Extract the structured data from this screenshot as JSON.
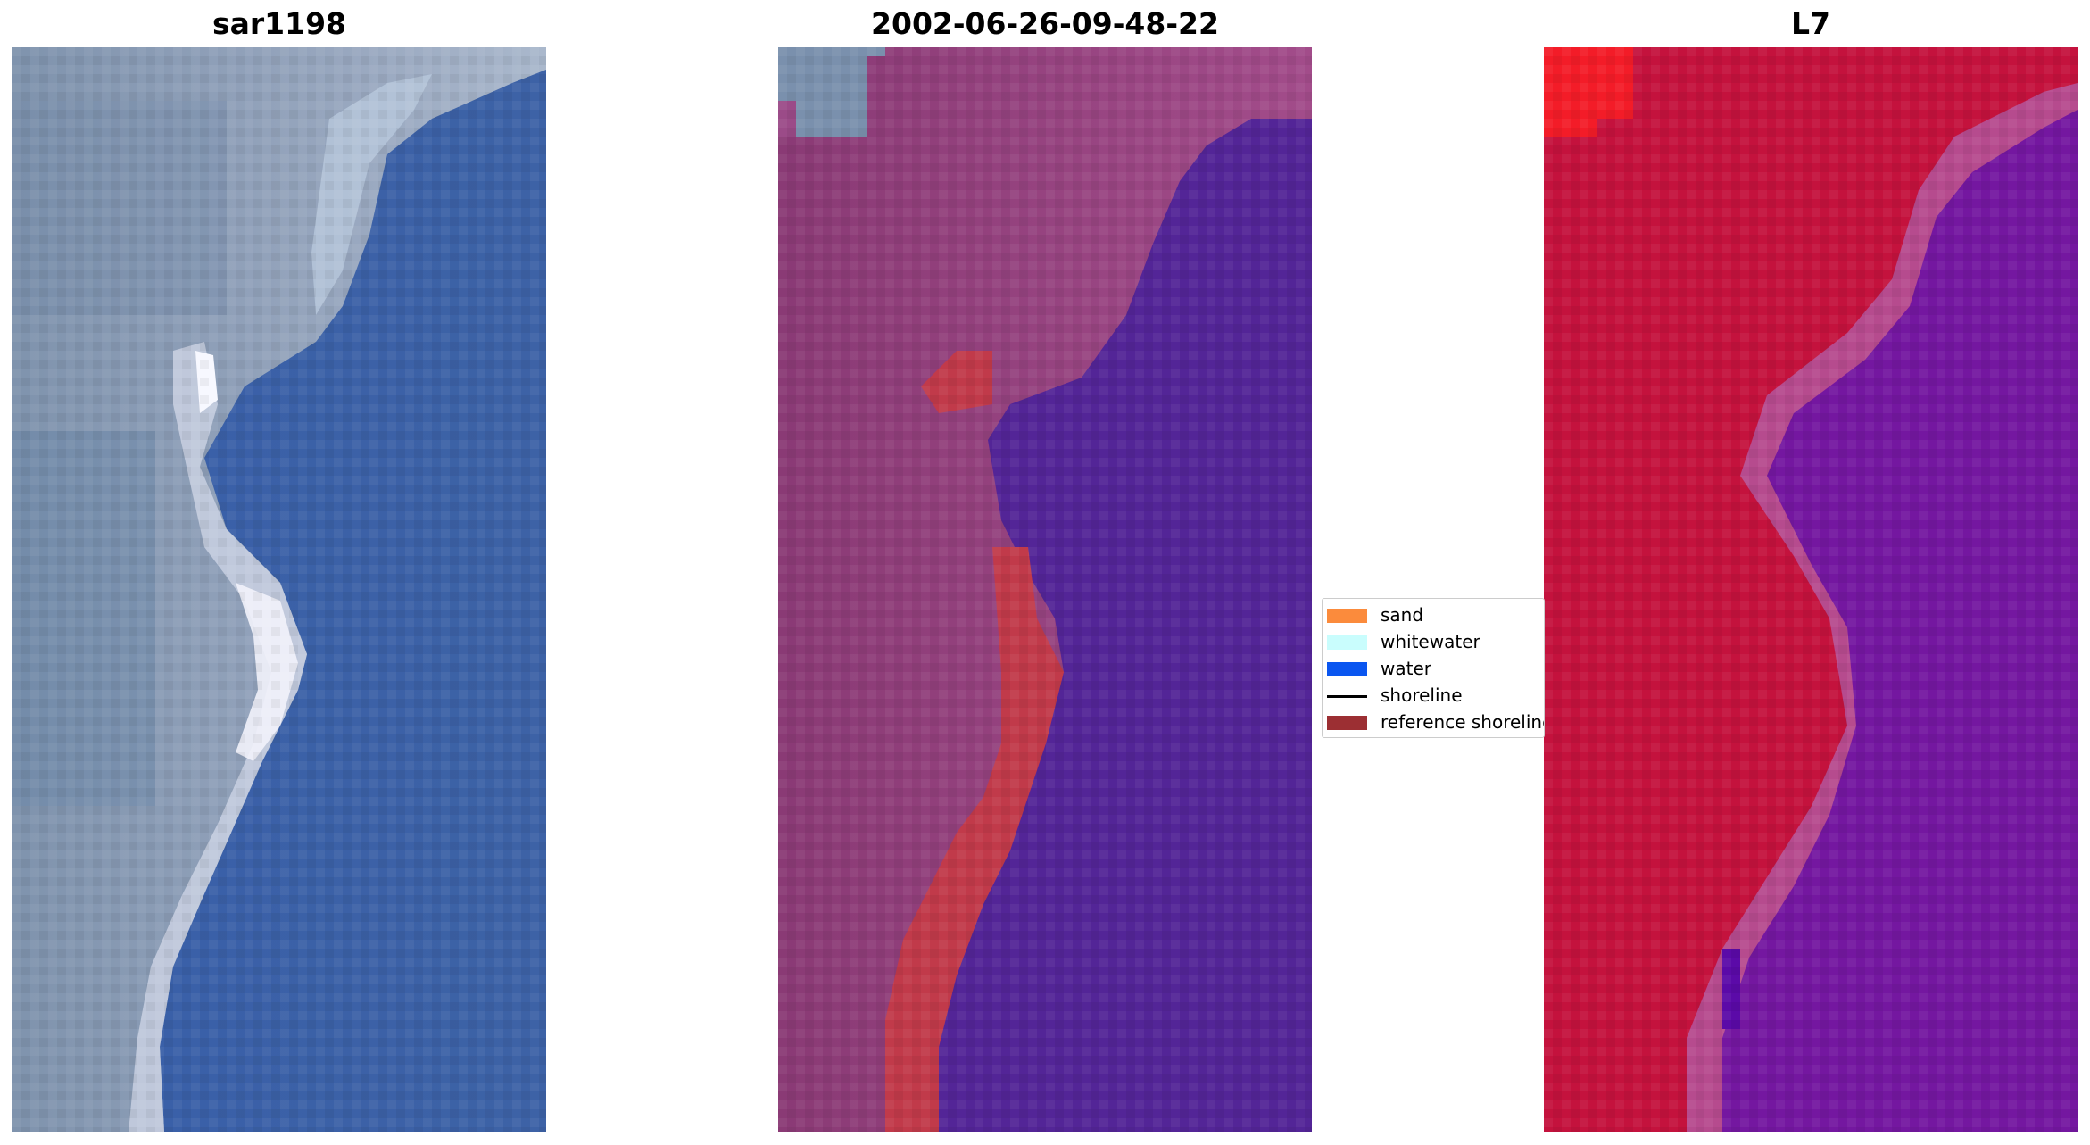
{
  "panels": [
    {
      "title": "sar1198"
    },
    {
      "title": "2002-06-26-09-48-22"
    },
    {
      "title": "L7"
    }
  ],
  "legend": {
    "items": [
      {
        "label": "sand",
        "color": "#fb8b3c",
        "kind": "patch"
      },
      {
        "label": "whitewater",
        "color": "#c9fdfd",
        "kind": "patch"
      },
      {
        "label": "water",
        "color": "#0a56f0",
        "kind": "patch"
      },
      {
        "label": "shoreline",
        "color": "#000000",
        "kind": "line"
      },
      {
        "label": "reference shoreline",
        "color": "#9c2f33",
        "kind": "patch"
      }
    ]
  },
  "colors": {
    "rgb_land": "#8a9bb5",
    "rgb_water": "#3f66ab",
    "classified_land": "#8c3d78",
    "classified_water": "#532597",
    "classified_reference": "#c13a4a",
    "index_land": "#c4123d",
    "index_water": "#7417a0"
  }
}
